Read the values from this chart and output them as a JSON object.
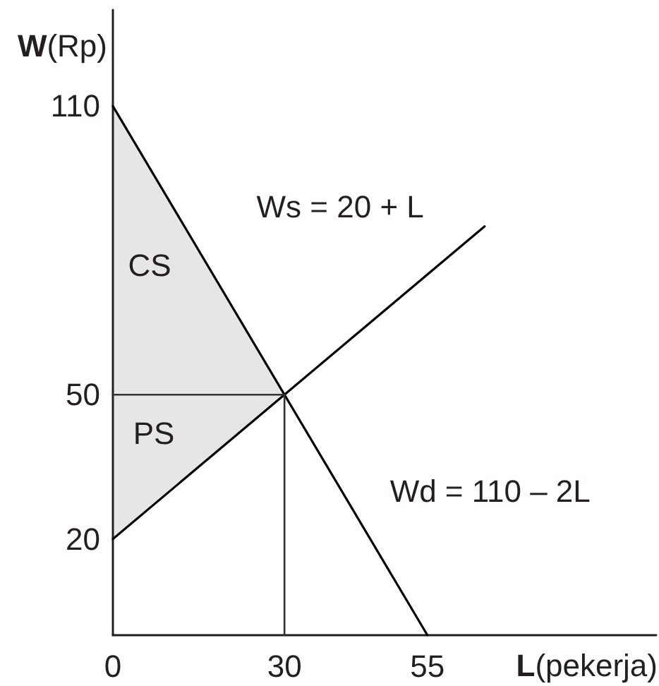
{
  "chart_data": {
    "type": "line",
    "xlabel": "L(pekerja)",
    "ylabel": "W(Rp)",
    "xlim": [
      0,
      95
    ],
    "ylim": [
      0,
      130
    ],
    "xticks": [
      0,
      30,
      55
    ],
    "yticks": [
      20,
      50,
      110
    ],
    "series": [
      {
        "name": "Ws = 20 + L",
        "color": "#000000",
        "x": [
          0,
          65
        ],
        "values": [
          20,
          85
        ]
      },
      {
        "name": "Wd = 110 – 2L",
        "color": "#000000",
        "x": [
          0,
          55
        ],
        "values": [
          110,
          0
        ]
      },
      {
        "color": "#333333",
        "x": [
          0,
          30
        ],
        "values": [
          50,
          50
        ],
        "lower": [
          20,
          50
        ],
        "upper": [
          110,
          50
        ]
      },
      {
        "color": "#333333",
        "x": [
          30,
          30
        ],
        "values": [
          0,
          50
        ]
      }
    ],
    "annotations": [
      "CS",
      "PS"
    ]
  }
}
